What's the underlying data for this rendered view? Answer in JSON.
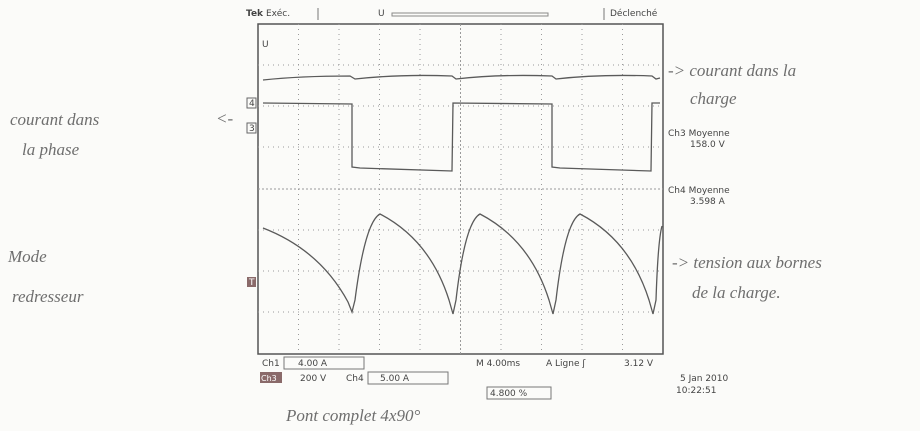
{
  "scope": {
    "brand": "Tek",
    "status": "Exéc.",
    "trigger_state": "Déclenché",
    "markers": {
      "trigger": "U",
      "ch4": "4",
      "ch3": "3",
      "level": "T"
    },
    "readouts": [
      {
        "label": "Ch3 Moyenne",
        "value": "158.0 V"
      },
      {
        "label": "Ch4 Moyenne",
        "value": "3.598 A"
      }
    ],
    "settings": {
      "ch1_label": "Ch1",
      "ch1_scale": "4.00 A",
      "ch3_label": "Ch3",
      "ch3_scale": "200 V",
      "ch4_label": "Ch4",
      "ch4_scale": "5.00 A",
      "timebase": "M 4.00ms",
      "trigger": "A Ligne ʃ",
      "trigger_level": "3.12 V",
      "position": "4.800 %"
    },
    "date": "5 Jan 2010",
    "time": "10:22:51"
  },
  "annotations": {
    "load_current": [
      "-> courant dans la",
      "charge"
    ],
    "phase_current": [
      "courant dans",
      "la phase"
    ],
    "phase_arrow": "<-",
    "mode": [
      "Mode",
      "redresseur"
    ],
    "load_voltage": [
      "-> tension aux bornes",
      "de la charge."
    ],
    "caption": "Pont complet 4x90°"
  }
}
